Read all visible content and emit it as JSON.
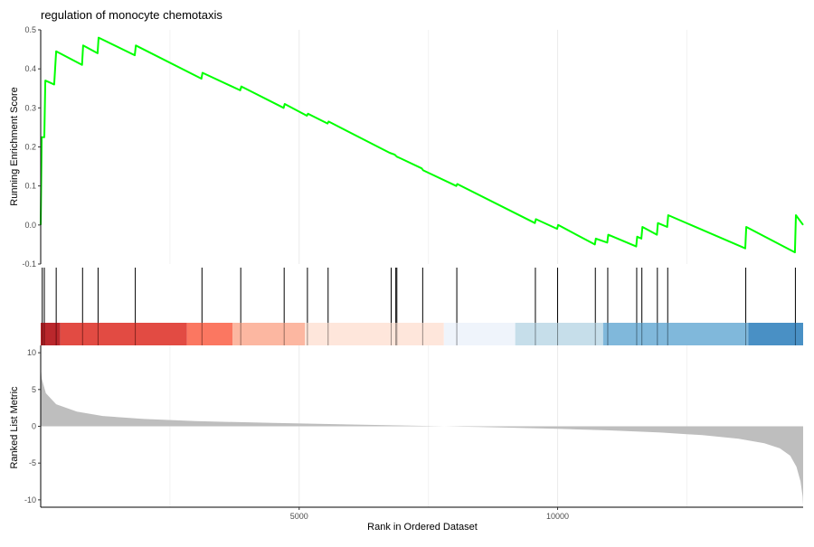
{
  "chart_data": {
    "type": "line",
    "title": "regulation of monocyte chemotaxis",
    "xlabel": "Rank in Ordered Dataset",
    "xlim": [
      0,
      14750
    ],
    "x_ticks": [
      5000,
      10000
    ],
    "x_tick_labels": [
      "5000",
      "10000"
    ],
    "grid": true,
    "es_panel": {
      "ylabel": "Running Enrichment Score",
      "ylim": [
        -0.1,
        0.5
      ],
      "y_ticks": [
        -0.1,
        0.0,
        0.1,
        0.2,
        0.3,
        0.4,
        0.5
      ],
      "y_tick_labels": [
        "-0.1",
        "0.0",
        "0.1",
        "0.2",
        "0.3",
        "0.4",
        "0.5"
      ],
      "series": [
        {
          "color": "#00ff00",
          "points": [
            [
              0,
              0.0
            ],
            [
              20,
              0.225
            ],
            [
              70,
              0.225
            ],
            [
              90,
              0.37
            ],
            [
              260,
              0.36
            ],
            [
              300,
              0.445
            ],
            [
              800,
              0.41
            ],
            [
              820,
              0.46
            ],
            [
              1100,
              0.44
            ],
            [
              1120,
              0.48
            ],
            [
              1820,
              0.435
            ],
            [
              1840,
              0.46
            ],
            [
              3110,
              0.375
            ],
            [
              3130,
              0.39
            ],
            [
              3860,
              0.345
            ],
            [
              3880,
              0.355
            ],
            [
              4700,
              0.3
            ],
            [
              4720,
              0.31
            ],
            [
              5150,
              0.28
            ],
            [
              5170,
              0.285
            ],
            [
              5550,
              0.26
            ],
            [
              5570,
              0.265
            ],
            [
              6750,
              0.185
            ],
            [
              6850,
              0.18
            ],
            [
              6890,
              0.175
            ],
            [
              6970,
              0.17
            ],
            [
              7370,
              0.145
            ],
            [
              7400,
              0.14
            ],
            [
              8040,
              0.1
            ],
            [
              8060,
              0.105
            ],
            [
              9560,
              0.005
            ],
            [
              9580,
              0.015
            ],
            [
              9990,
              -0.01
            ],
            [
              10010,
              0.0
            ],
            [
              10720,
              -0.05
            ],
            [
              10740,
              -0.035
            ],
            [
              10960,
              -0.045
            ],
            [
              10980,
              -0.025
            ],
            [
              11520,
              -0.055
            ],
            [
              11540,
              -0.03
            ],
            [
              11620,
              -0.035
            ],
            [
              11640,
              -0.005
            ],
            [
              11920,
              -0.025
            ],
            [
              11940,
              0.005
            ],
            [
              12120,
              -0.005
            ],
            [
              12140,
              0.025
            ],
            [
              13630,
              -0.06
            ],
            [
              13650,
              -0.005
            ],
            [
              14590,
              -0.07
            ],
            [
              14610,
              0.025
            ],
            [
              14750,
              0.0
            ]
          ]
        }
      ]
    },
    "hit_positions": [
      30,
      70,
      300,
      810,
      1110,
      1830,
      3120,
      3870,
      4710,
      5160,
      5560,
      6780,
      6870,
      6890,
      7390,
      8050,
      9570,
      10000,
      10730,
      10970,
      11530,
      11630,
      11930,
      12130,
      13640,
      14600
    ],
    "rank_color_bands": [
      {
        "from": 0,
        "to": 380,
        "color": "#b5171c"
      },
      {
        "from": 380,
        "to": 2830,
        "color": "#e03d35"
      },
      {
        "from": 2830,
        "to": 3710,
        "color": "#fb6d55"
      },
      {
        "from": 3710,
        "to": 5110,
        "color": "#fcb29a"
      },
      {
        "from": 5110,
        "to": 7800,
        "color": "#fee4d8"
      },
      {
        "from": 7800,
        "to": 9180,
        "color": "#eef3fb"
      },
      {
        "from": 9180,
        "to": 10880,
        "color": "#c2dbe8"
      },
      {
        "from": 10880,
        "to": 13690,
        "color": "#76b3d8"
      },
      {
        "from": 13690,
        "to": 14750,
        "color": "#3b88c1"
      }
    ],
    "metric_panel": {
      "ylabel": "Ranked List Metric",
      "ylim": [
        -11,
        11
      ],
      "y_ticks": [
        -10,
        -5,
        0,
        5,
        10
      ],
      "y_tick_labels": [
        "-10",
        "-5",
        "0",
        "5",
        "10"
      ],
      "fill_color": "#bebebe",
      "curve": [
        [
          0,
          8.2
        ],
        [
          20,
          6.5
        ],
        [
          100,
          4.5
        ],
        [
          300,
          3.0
        ],
        [
          700,
          2.0
        ],
        [
          1200,
          1.4
        ],
        [
          2000,
          1.0
        ],
        [
          3000,
          0.7
        ],
        [
          4500,
          0.45
        ],
        [
          6000,
          0.25
        ],
        [
          7500,
          0.05
        ],
        [
          8500,
          -0.1
        ],
        [
          10000,
          -0.35
        ],
        [
          11000,
          -0.55
        ],
        [
          12000,
          -0.85
        ],
        [
          12800,
          -1.2
        ],
        [
          13500,
          -1.7
        ],
        [
          14000,
          -2.3
        ],
        [
          14300,
          -3.0
        ],
        [
          14500,
          -4.0
        ],
        [
          14620,
          -5.5
        ],
        [
          14700,
          -7.5
        ],
        [
          14740,
          -9.5
        ],
        [
          14750,
          -10.7
        ]
      ]
    }
  }
}
